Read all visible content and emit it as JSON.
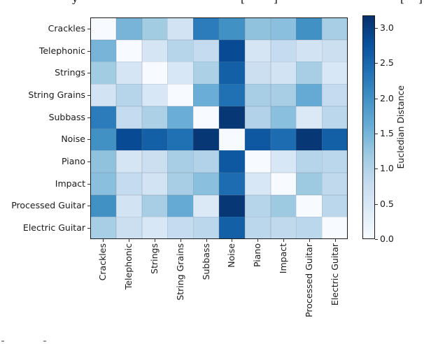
{
  "figure": {
    "background": "#ffffff"
  },
  "chart_data": {
    "type": "heatmap",
    "title": "",
    "categories": [
      "Crackles",
      "Telephonic",
      "Strings",
      "String Grains",
      "Subbass",
      "Noise",
      "Piano",
      "Impact",
      "Processed Guitar",
      "Electric Guitar"
    ],
    "matrix": [
      [
        0,
        1.5,
        1.15,
        0.6,
        2.25,
        2.0,
        1.3,
        1.35,
        2.0,
        1.1
      ],
      [
        1.5,
        0,
        0.55,
        0.95,
        0.8,
        2.85,
        0.55,
        0.8,
        0.6,
        0.7
      ],
      [
        1.15,
        0.55,
        0,
        0.5,
        1.05,
        2.6,
        0.7,
        0.6,
        1.1,
        0.5
      ],
      [
        0.6,
        0.95,
        0.5,
        0,
        1.6,
        2.4,
        1.1,
        1.1,
        1.65,
        0.8
      ],
      [
        2.25,
        0.8,
        1.05,
        1.6,
        0,
        3.1,
        1.0,
        1.35,
        0.45,
        0.9
      ],
      [
        2.0,
        2.85,
        2.6,
        2.4,
        3.1,
        0,
        2.7,
        2.45,
        3.1,
        2.6
      ],
      [
        1.3,
        0.55,
        0.7,
        1.1,
        1.0,
        2.7,
        0,
        0.5,
        0.95,
        0.9
      ],
      [
        1.35,
        0.8,
        0.6,
        1.1,
        1.35,
        2.45,
        0.5,
        0,
        1.2,
        0.85
      ],
      [
        2.0,
        0.6,
        1.1,
        1.65,
        0.45,
        3.1,
        0.95,
        1.2,
        0,
        0.9
      ],
      [
        1.1,
        0.7,
        0.5,
        0.8,
        0.9,
        2.6,
        0.9,
        0.85,
        0.9,
        0
      ]
    ],
    "colormap": "Blues",
    "vmin": 0,
    "vmax": 3.18,
    "x_tick_rotation": 90,
    "grid": false,
    "colorbar": {
      "label": "Eucledian Distance",
      "ticks": [
        "0.0",
        "0.5",
        "1.0",
        "1.5",
        "2.0",
        "2.5",
        "3.0"
      ],
      "position": "right"
    }
  },
  "cropped_text_fragments": {
    "top": [
      "y",
      "[",
      "]",
      "[",
      "]"
    ]
  }
}
